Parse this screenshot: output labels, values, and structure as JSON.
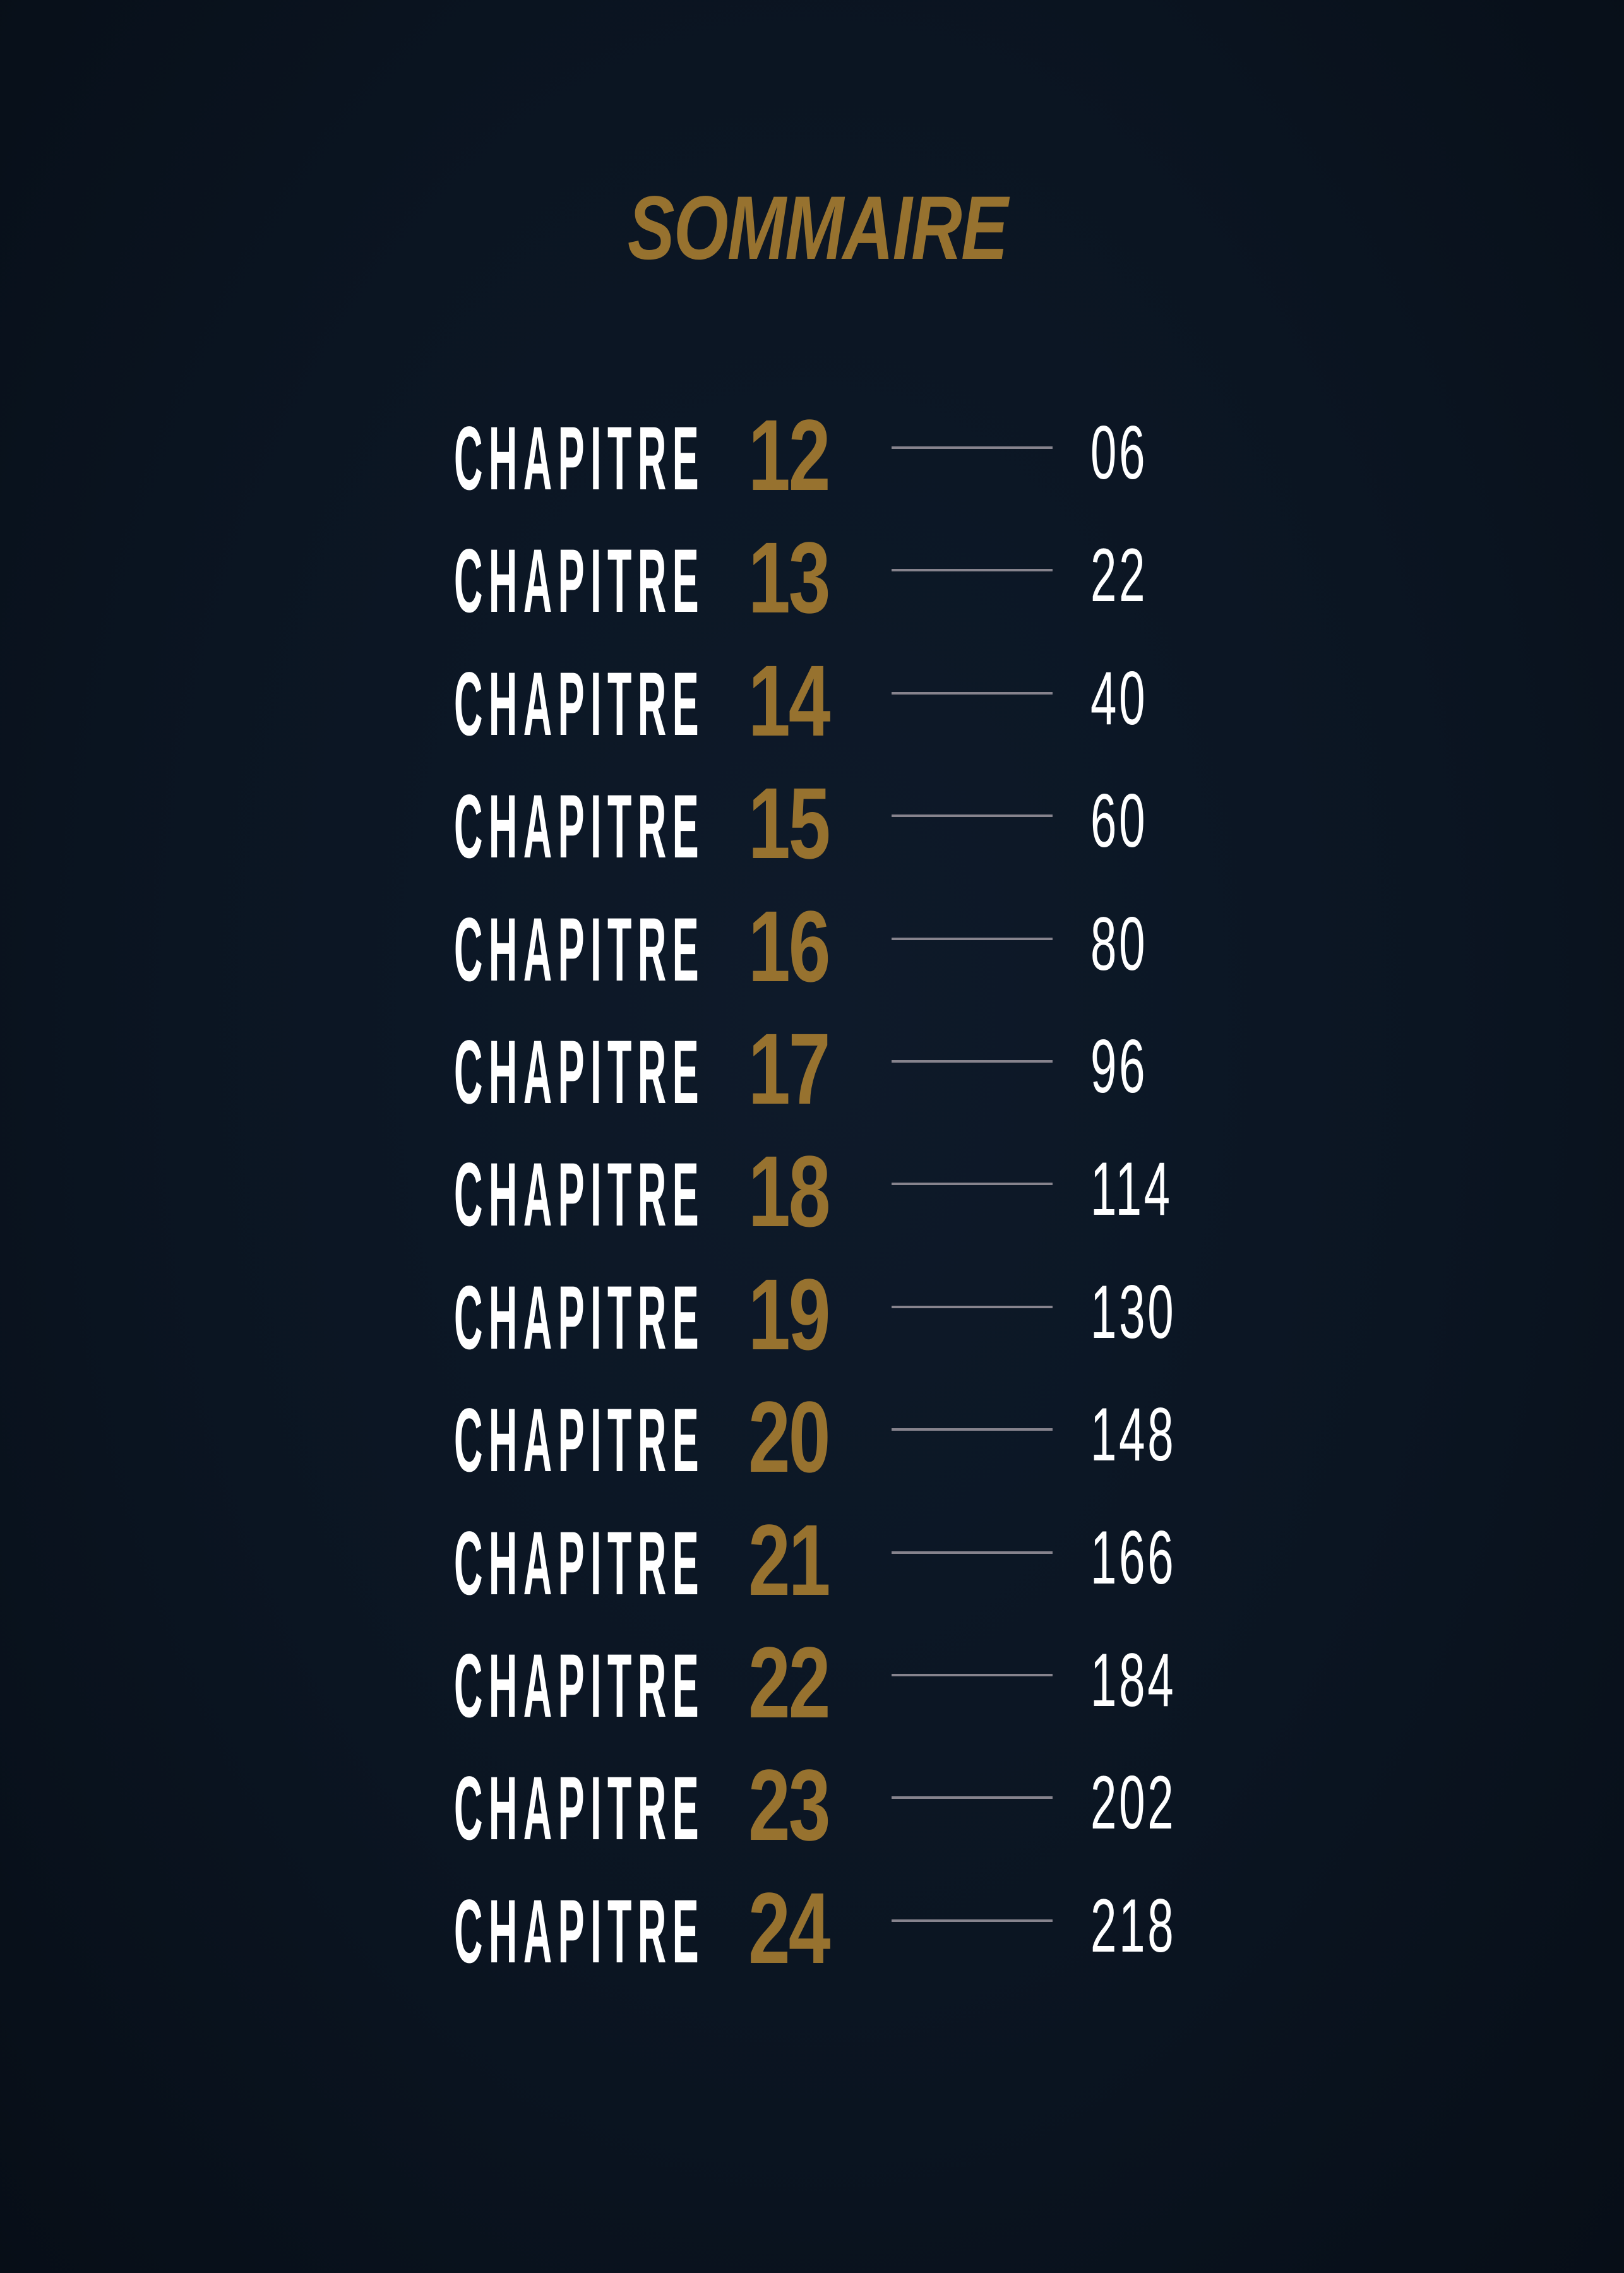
{
  "title": "SOMMAIRE",
  "colors": {
    "background": "#0b1522",
    "accent_gold": "#97722f",
    "text": "#ffffff",
    "leader_line": "#86838d"
  },
  "entries": [
    {
      "label": "CHAPITRE",
      "number": "12",
      "page": "06"
    },
    {
      "label": "CHAPITRE",
      "number": "13",
      "page": "22"
    },
    {
      "label": "CHAPITRE",
      "number": "14",
      "page": "40"
    },
    {
      "label": "CHAPITRE",
      "number": "15",
      "page": "60"
    },
    {
      "label": "CHAPITRE",
      "number": "16",
      "page": "80"
    },
    {
      "label": "CHAPITRE",
      "number": "17",
      "page": "96"
    },
    {
      "label": "CHAPITRE",
      "number": "18",
      "page": "114"
    },
    {
      "label": "CHAPITRE",
      "number": "19",
      "page": "130"
    },
    {
      "label": "CHAPITRE",
      "number": "20",
      "page": "148"
    },
    {
      "label": "CHAPITRE",
      "number": "21",
      "page": "166"
    },
    {
      "label": "CHAPITRE",
      "number": "22",
      "page": "184"
    },
    {
      "label": "CHAPITRE",
      "number": "23",
      "page": "202"
    },
    {
      "label": "CHAPITRE",
      "number": "24",
      "page": "218"
    }
  ]
}
